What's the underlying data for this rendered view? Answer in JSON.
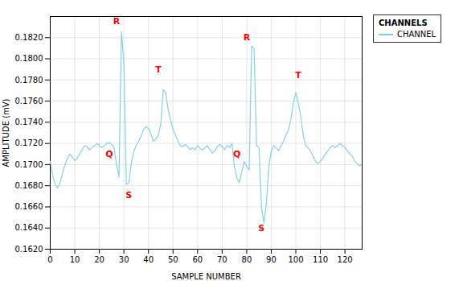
{
  "chart_data": {
    "type": "line",
    "xlabel": "SAMPLE NUMBER",
    "ylabel": "AMPLITUDE (mV)",
    "legend_title": "CHANNELS",
    "legend": "right",
    "grid": true,
    "xlim": [
      0,
      127
    ],
    "ylim": [
      0.162,
      0.184
    ],
    "xticks": [
      0,
      10,
      20,
      30,
      40,
      50,
      60,
      70,
      80,
      90,
      100,
      110,
      120
    ],
    "yticks": [
      {
        "value": 0.162,
        "label": "0.1620"
      },
      {
        "value": 0.164,
        "label": "0.1640"
      },
      {
        "value": 0.166,
        "label": "0.1660"
      },
      {
        "value": 0.168,
        "label": "0.1680"
      },
      {
        "value": 0.17,
        "label": "0.1700"
      },
      {
        "value": 0.172,
        "label": "0.1720"
      },
      {
        "value": 0.174,
        "label": "0.1740"
      },
      {
        "value": 0.176,
        "label": "0.1760"
      },
      {
        "value": 0.178,
        "label": "0.1780"
      },
      {
        "value": 0.18,
        "label": "0.1800"
      },
      {
        "value": 0.182,
        "label": "0.1820"
      }
    ],
    "annotations": [
      {
        "label": "R",
        "x": 27,
        "y": 0.18325,
        "color": "red"
      },
      {
        "label": "Q",
        "x": 24,
        "y": 0.17075,
        "color": "red"
      },
      {
        "label": "S",
        "x": 32,
        "y": 0.1668,
        "color": "red"
      },
      {
        "label": "T",
        "x": 44,
        "y": 0.1787,
        "color": "red"
      },
      {
        "label": "R",
        "x": 80,
        "y": 0.18175,
        "color": "red"
      },
      {
        "label": "Q",
        "x": 76,
        "y": 0.17075,
        "color": "red"
      },
      {
        "label": "S",
        "x": 86,
        "y": 0.1637,
        "color": "red"
      },
      {
        "label": "T",
        "x": 101,
        "y": 0.1782,
        "color": "red"
      }
    ],
    "x": [
      0,
      1,
      2,
      3,
      4,
      5,
      6,
      7,
      8,
      9,
      10,
      11,
      12,
      13,
      14,
      15,
      16,
      17,
      18,
      19,
      20,
      21,
      22,
      23,
      24,
      25,
      26,
      27,
      28,
      29,
      30,
      31,
      32,
      33,
      34,
      35,
      36,
      37,
      38,
      39,
      40,
      41,
      42,
      43,
      44,
      45,
      46,
      47,
      48,
      49,
      50,
      51,
      52,
      53,
      54,
      55,
      56,
      57,
      58,
      59,
      60,
      61,
      62,
      63,
      64,
      65,
      66,
      67,
      68,
      69,
      70,
      71,
      72,
      73,
      74,
      75,
      76,
      77,
      78,
      79,
      80,
      81,
      82,
      83,
      84,
      85,
      86,
      87,
      88,
      89,
      90,
      91,
      92,
      93,
      94,
      95,
      96,
      97,
      98,
      99,
      100,
      101,
      102,
      103,
      104,
      105,
      106,
      107,
      108,
      109,
      110,
      111,
      112,
      113,
      114,
      115,
      116,
      117,
      118,
      119,
      120,
      121,
      122,
      123,
      124,
      125,
      126,
      127
    ],
    "series": [
      {
        "name": "CHANNEL",
        "color": "#87CEEB",
        "values": [
          0.1703,
          0.169,
          0.1681,
          0.1678,
          0.1683,
          0.1692,
          0.17,
          0.1706,
          0.171,
          0.1707,
          0.1704,
          0.1706,
          0.171,
          0.1714,
          0.1718,
          0.1717,
          0.1714,
          0.1716,
          0.1718,
          0.172,
          0.1718,
          0.1716,
          0.1718,
          0.172,
          0.1721,
          0.1719,
          0.1716,
          0.17,
          0.1688,
          0.1826,
          0.1795,
          0.1681,
          0.1683,
          0.1701,
          0.1712,
          0.1718,
          0.1722,
          0.1727,
          0.1733,
          0.1736,
          0.1734,
          0.1729,
          0.1722,
          0.1724,
          0.1728,
          0.1738,
          0.1771,
          0.1768,
          0.1752,
          0.1742,
          0.1733,
          0.1728,
          0.1722,
          0.1718,
          0.1717,
          0.1719,
          0.1717,
          0.1714,
          0.1716,
          0.1714,
          0.1718,
          0.1715,
          0.1714,
          0.1716,
          0.1718,
          0.1714,
          0.1711,
          0.1713,
          0.1717,
          0.1719,
          0.1717,
          0.1714,
          0.1718,
          0.1716,
          0.172,
          0.1698,
          0.1687,
          0.1683,
          0.1693,
          0.1703,
          0.1698,
          0.1695,
          0.1812,
          0.181,
          0.1718,
          0.1716,
          0.166,
          0.1645,
          0.1663,
          0.1698,
          0.1713,
          0.1718,
          0.1716,
          0.1713,
          0.1718,
          0.1722,
          0.1728,
          0.1733,
          0.1743,
          0.1758,
          0.1768,
          0.1758,
          0.1746,
          0.1728,
          0.1718,
          0.1716,
          0.1713,
          0.1708,
          0.1703,
          0.1701,
          0.1703,
          0.1706,
          0.171,
          0.1713,
          0.1716,
          0.1718,
          0.1716,
          0.1718,
          0.172,
          0.1718,
          0.1716,
          0.1713,
          0.171,
          0.1708,
          0.1703,
          0.1701,
          0.1699,
          0.17
        ]
      }
    ]
  }
}
